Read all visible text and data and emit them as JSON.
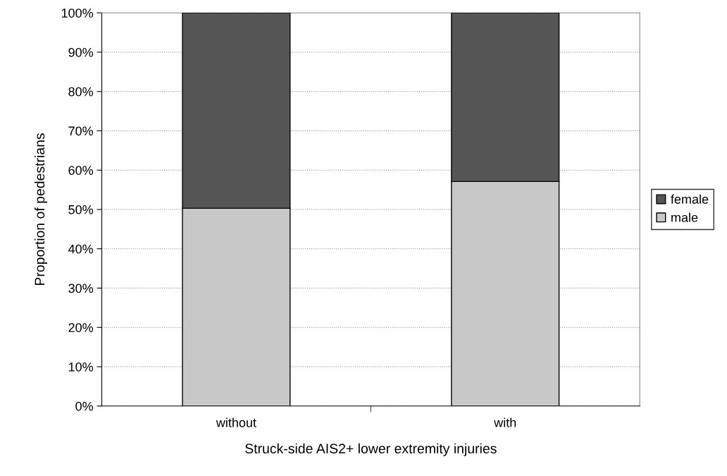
{
  "chart_data": {
    "type": "bar",
    "stacked": true,
    "xlabel": "Struck-side AIS2+ lower extremity injuries",
    "ylabel": "Proportion of pedestrians",
    "categories": [
      "without",
      "with"
    ],
    "series": [
      {
        "name": "male",
        "color": "#c8c8c8",
        "values": [
          50.3,
          57.1
        ]
      },
      {
        "name": "female",
        "color": "#555555",
        "values": [
          49.7,
          42.9
        ]
      }
    ],
    "ylim": [
      0,
      100
    ],
    "yticks": [
      {
        "value": 0,
        "label": "0%"
      },
      {
        "value": 10,
        "label": "10%"
      },
      {
        "value": 20,
        "label": "20%"
      },
      {
        "value": 30,
        "label": "30%"
      },
      {
        "value": 40,
        "label": "40%"
      },
      {
        "value": 50,
        "label": "50%"
      },
      {
        "value": 60,
        "label": "60%"
      },
      {
        "value": 70,
        "label": "70%"
      },
      {
        "value": 80,
        "label": "80%"
      },
      {
        "value": 90,
        "label": "90%"
      },
      {
        "value": 100,
        "label": "100%"
      }
    ],
    "grid": "y",
    "legend": "right"
  }
}
